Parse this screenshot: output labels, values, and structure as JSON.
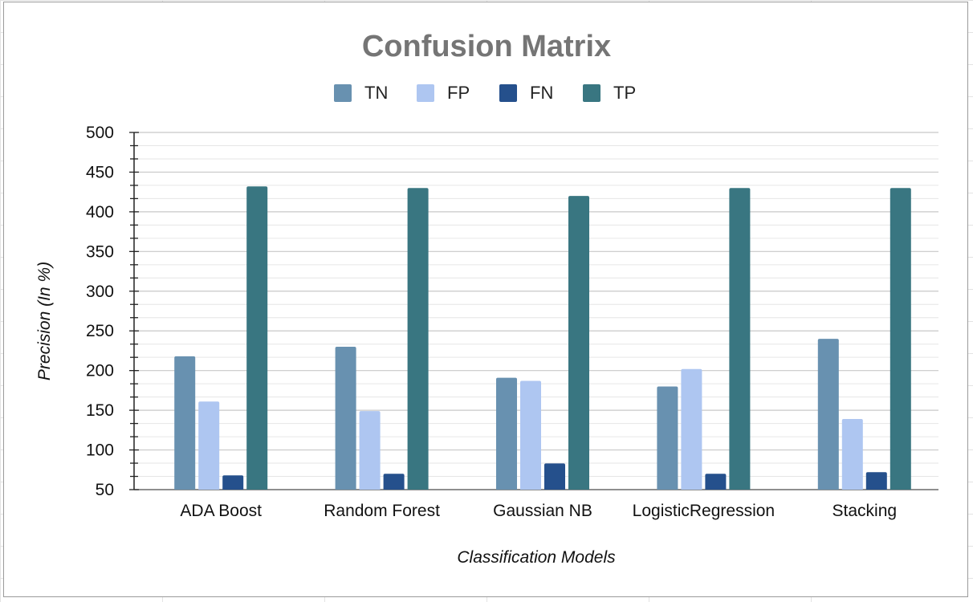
{
  "chart_data": {
    "type": "bar",
    "title": "Confusion Matrix",
    "xlabel": "Classification Models",
    "ylabel": "Precision (In %)",
    "categories": [
      "ADA Boost",
      "Random Forest",
      "Gaussian NB",
      "LogisticRegression",
      "Stacking"
    ],
    "series": [
      {
        "name": "TN",
        "color": "#6891b0",
        "values": [
          218,
          230,
          191,
          180,
          240
        ]
      },
      {
        "name": "FP",
        "color": "#aec6f1",
        "values": [
          161,
          149,
          187,
          202,
          139
        ]
      },
      {
        "name": "FN",
        "color": "#25508c",
        "values": [
          68,
          70,
          83,
          70,
          72
        ]
      },
      {
        "name": "TP",
        "color": "#397681",
        "values": [
          432,
          430,
          420,
          430,
          430
        ]
      }
    ],
    "ylim": [
      50,
      500
    ],
    "yticks": [
      "50",
      "100",
      "150",
      "200",
      "250",
      "300",
      "350",
      "400",
      "450",
      "500"
    ],
    "grid": true,
    "legend_position": "top-center"
  }
}
